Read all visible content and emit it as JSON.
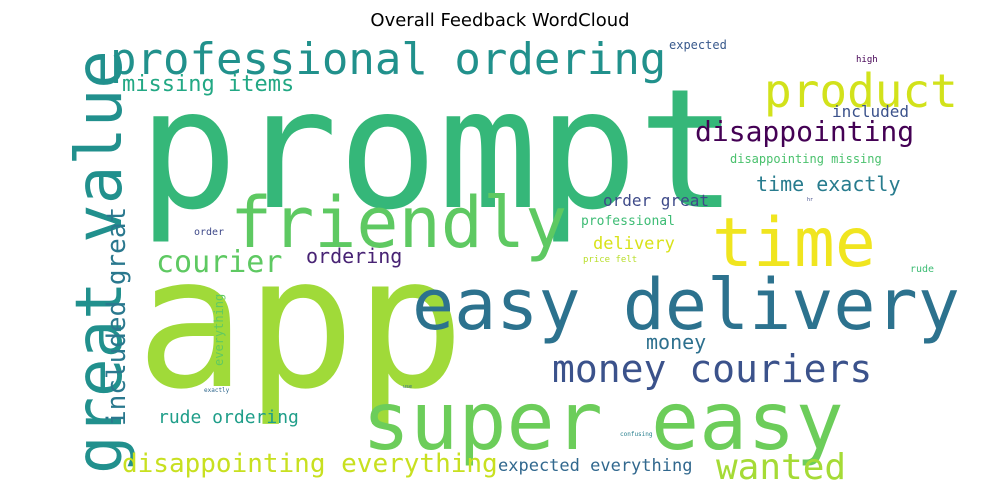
{
  "title": "Overall Feedback WordCloud",
  "words": [
    {
      "text": "prompt",
      "color": "#35b779"
    },
    {
      "text": "app",
      "color": "#a0da39"
    },
    {
      "text": "super easy",
      "color": "#6ccd5a"
    },
    {
      "text": "easy delivery",
      "color": "#2c728e"
    },
    {
      "text": "friendly",
      "color": "#5ec962"
    },
    {
      "text": "time",
      "color": "#f0e51f"
    },
    {
      "text": "great value",
      "color": "#21908d"
    },
    {
      "text": "professional ordering",
      "color": "#21918c"
    },
    {
      "text": "product",
      "color": "#d2e21b"
    },
    {
      "text": "money couriers",
      "color": "#3b528b"
    },
    {
      "text": "wanted",
      "color": "#a5db36"
    },
    {
      "text": "disappointing everything",
      "color": "#c8e020"
    },
    {
      "text": "disappointing",
      "color": "#440154"
    },
    {
      "text": "courier",
      "color": "#5ec962"
    },
    {
      "text": "included great",
      "color": "#2a788e"
    },
    {
      "text": "missing items",
      "color": "#22a884"
    },
    {
      "text": "time exactly",
      "color": "#287c8e"
    },
    {
      "text": "expected everything",
      "color": "#31688e"
    },
    {
      "text": "rude ordering",
      "color": "#1f9e89"
    },
    {
      "text": "money",
      "color": "#2d708e"
    },
    {
      "text": "ordering",
      "color": "#482374"
    },
    {
      "text": "order great",
      "color": "#3e4a89"
    },
    {
      "text": "delivery",
      "color": "#d8e219"
    },
    {
      "text": "included",
      "color": "#3b528b"
    },
    {
      "text": "professional",
      "color": "#3dbc74"
    },
    {
      "text": "disappointing missing",
      "color": "#4ac16d"
    },
    {
      "text": "expected",
      "color": "#38598c"
    },
    {
      "text": "everything",
      "color": "#60ca60"
    },
    {
      "text": "high",
      "color": "#440154"
    },
    {
      "text": "order",
      "color": "#3e4989"
    },
    {
      "text": "price felt",
      "color": "#b8de29"
    },
    {
      "text": "rude",
      "color": "#3dbc74"
    },
    {
      "text": "confusing",
      "color": "#277f8e"
    },
    {
      "text": "exactly",
      "color": "#31688e"
    },
    {
      "text": "use",
      "color": "#31688e"
    },
    {
      "text": "hr",
      "color": "#3e4989"
    }
  ]
}
